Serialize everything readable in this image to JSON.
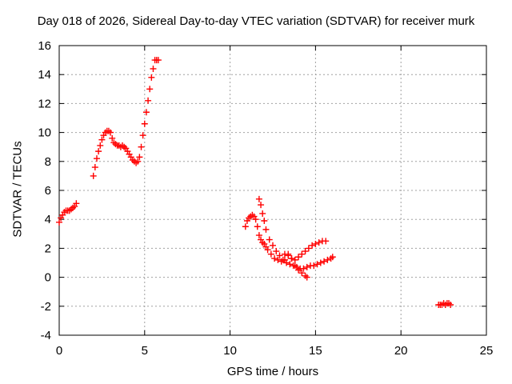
{
  "chart_data": {
    "type": "scatter",
    "title": "Day 018 of 2026, Sidereal Day-to-day VTEC variation (SDTVAR) for receiver murk",
    "xlabel": "GPS time / hours",
    "ylabel": "SDTVAR / TECUs",
    "xlim": [
      0,
      25
    ],
    "ylim": [
      -4,
      16
    ],
    "xticks": [
      "0",
      "5",
      "10",
      "15",
      "20",
      "25"
    ],
    "yticks": [
      "-4",
      "-2",
      "0",
      "2",
      "4",
      "6",
      "8",
      "10",
      "12",
      "14",
      "16"
    ],
    "grid": true,
    "marker": "+",
    "color": "#ff0000",
    "series": [
      {
        "x": [
          0.0,
          0.1,
          0.2,
          0.3,
          0.4,
          0.5,
          0.6,
          0.7,
          0.8,
          0.9,
          1.0,
          2.0,
          2.1,
          2.2,
          2.3,
          2.4,
          2.5,
          2.6,
          2.7,
          2.8,
          2.9,
          3.0,
          3.1,
          3.2,
          3.3,
          3.4,
          3.5,
          3.6,
          3.7,
          3.8,
          3.9,
          4.0,
          4.1,
          4.2,
          4.3,
          4.4,
          4.5,
          4.6,
          4.7,
          4.8,
          4.9,
          5.0,
          5.1,
          5.2,
          5.3,
          5.4,
          5.5,
          5.6,
          5.7,
          5.8,
          10.9,
          11.0,
          11.1,
          11.2,
          11.3,
          11.4,
          11.5,
          11.6,
          11.7,
          11.8,
          11.9,
          12.0,
          12.1,
          12.2,
          12.4,
          12.6,
          12.8,
          13.0,
          13.2,
          13.4,
          13.6,
          13.8,
          14.0,
          14.2,
          14.4,
          14.5,
          11.7,
          11.8,
          11.9,
          12.0,
          12.1,
          12.3,
          12.5,
          12.7,
          12.9,
          13.1,
          13.3,
          13.5,
          13.7,
          13.9,
          14.1,
          14.3,
          14.5,
          14.7,
          14.9,
          15.1,
          15.3,
          15.5,
          15.7,
          15.9,
          16.0,
          13.2,
          13.4,
          13.6,
          13.8,
          14.0,
          14.2,
          14.4,
          14.6,
          14.8,
          15.0,
          15.2,
          15.4,
          15.6,
          22.2,
          22.3,
          22.4,
          22.5,
          22.6,
          22.7,
          22.8,
          22.9
        ],
        "y": [
          3.8,
          4.1,
          4.3,
          4.5,
          4.6,
          4.6,
          4.6,
          4.7,
          4.8,
          4.9,
          5.1,
          7.0,
          7.6,
          8.2,
          8.7,
          9.1,
          9.5,
          9.8,
          10.0,
          10.1,
          10.1,
          10.0,
          9.6,
          9.3,
          9.2,
          9.1,
          9.1,
          9.0,
          9.1,
          9.0,
          8.9,
          8.7,
          8.5,
          8.3,
          8.1,
          8.0,
          7.9,
          8.0,
          8.3,
          9.0,
          9.8,
          10.6,
          11.4,
          12.2,
          13.0,
          13.8,
          14.4,
          15.0,
          15.0,
          15.0,
          3.5,
          3.9,
          4.1,
          4.2,
          4.3,
          4.2,
          4.0,
          3.5,
          2.9,
          2.6,
          2.4,
          2.3,
          2.1,
          1.9,
          1.6,
          1.3,
          1.2,
          1.1,
          1.2,
          1.6,
          1.3,
          0.8,
          0.5,
          0.3,
          0.1,
          0.0,
          5.4,
          5.0,
          4.4,
          3.9,
          3.3,
          2.6,
          2.2,
          1.8,
          1.5,
          1.2,
          1.0,
          0.9,
          0.8,
          0.7,
          0.6,
          0.6,
          0.7,
          0.8,
          0.8,
          0.9,
          1.0,
          1.1,
          1.2,
          1.3,
          1.4,
          1.6,
          1.5,
          1.3,
          1.2,
          1.4,
          1.6,
          1.8,
          2.0,
          2.2,
          2.3,
          2.4,
          2.5,
          2.5,
          -1.9,
          -1.9,
          -1.9,
          -1.8,
          -1.9,
          -1.8,
          -1.8,
          -1.9
        ]
      }
    ]
  }
}
